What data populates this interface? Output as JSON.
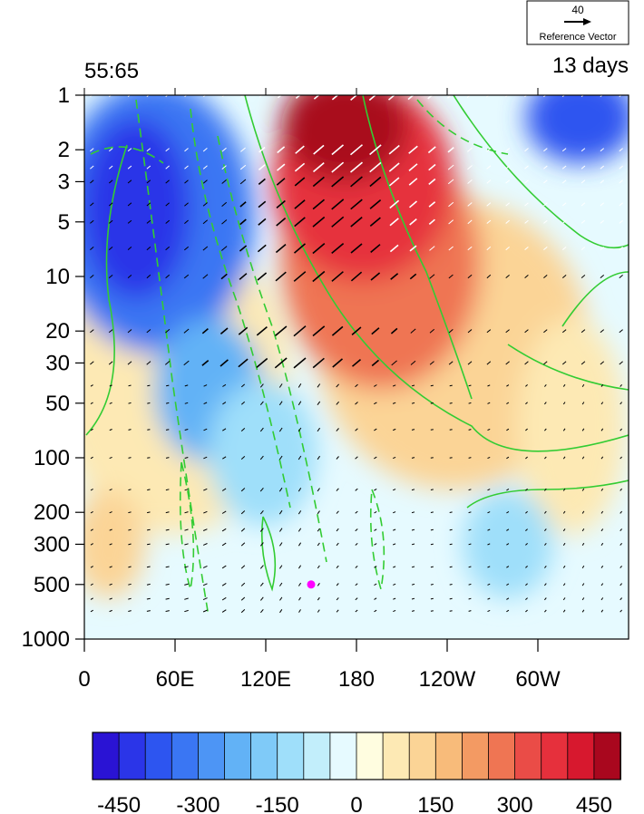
{
  "chart_data": {
    "type": "heatmap",
    "title_left": "55:65",
    "title_right": "13 days",
    "x_ticks": [
      "0",
      "60E",
      "120E",
      "180",
      "120W",
      "60W"
    ],
    "x_tick_degrees": [
      0,
      60,
      120,
      180,
      240,
      300
    ],
    "x_range_degrees": [
      0,
      360
    ],
    "y_ticks": [
      "1",
      "2",
      "3",
      "5",
      "10",
      "20",
      "30",
      "50",
      "100",
      "200",
      "300",
      "500",
      "1000"
    ],
    "y_tick_values": [
      1,
      2,
      3,
      5,
      10,
      20,
      30,
      50,
      100,
      200,
      300,
      500,
      1000
    ],
    "y_range": [
      1,
      1000
    ],
    "y_scale": "log",
    "y_direction": "reversed",
    "colorbar": {
      "tick_labels": [
        "-450",
        "-300",
        "-150",
        "0",
        "150",
        "300",
        "450"
      ],
      "tick_values": [
        -450,
        -300,
        -150,
        0,
        150,
        300,
        450
      ],
      "colors": [
        "#2a13d4",
        "#2b35e8",
        "#2d55f0",
        "#3a76f3",
        "#4d95f5",
        "#62b2f6",
        "#7fcaf8",
        "#9fdffa",
        "#c2eefb",
        "#e6faff",
        "#fffde0",
        "#fde9b4",
        "#fbd496",
        "#f8bb7a",
        "#f39a63",
        "#ef7553",
        "#ea4c47",
        "#e6303c",
        "#d7182e",
        "#a9071e"
      ]
    },
    "reference_vector": {
      "value": "40",
      "label": "Reference Vector"
    },
    "marker": {
      "lon": 150,
      "pressure": 500,
      "color": "#ff00ff"
    },
    "contour_color": "#33cc33",
    "grid": false
  }
}
